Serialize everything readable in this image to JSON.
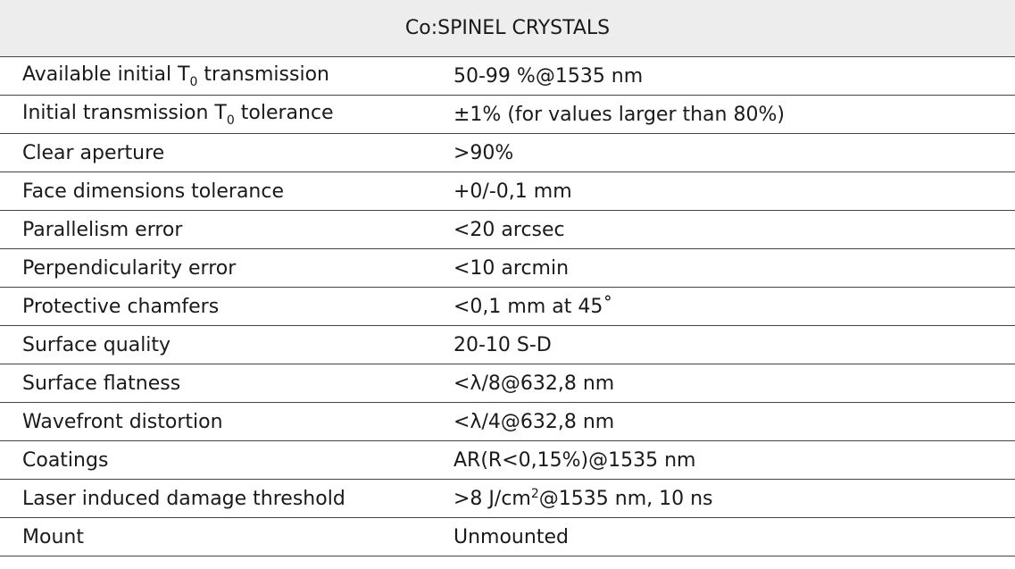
{
  "header": {
    "title": "Co:SPINEL CRYSTALS"
  },
  "table": {
    "rows": [
      [
        [
          "Available initial T",
          {
            "sub": "0"
          },
          " transmission"
        ],
        [
          "50-99 %@1535 nm"
        ]
      ],
      [
        [
          "Initial transmission T",
          {
            "sub": "0"
          },
          " tolerance"
        ],
        [
          "±1% (for values larger than 80%)"
        ]
      ],
      [
        [
          "Clear aperture"
        ],
        [
          ">90%"
        ]
      ],
      [
        [
          "Face dimensions tolerance"
        ],
        [
          "+0/-0,1 mm"
        ]
      ],
      [
        [
          "Parallelism error"
        ],
        [
          "<20 arcsec"
        ]
      ],
      [
        [
          "Perpendicularity error"
        ],
        [
          "<10 arcmin"
        ]
      ],
      [
        [
          "Protective chamfers"
        ],
        [
          "<0,1 mm at 45˚"
        ]
      ],
      [
        [
          "Surface quality"
        ],
        [
          "20-10 S-D"
        ]
      ],
      [
        [
          "Surface flatness"
        ],
        [
          "<λ/8@632,8 nm"
        ]
      ],
      [
        [
          "Wavefront distortion"
        ],
        [
          "<λ/4@632,8 nm"
        ]
      ],
      [
        [
          "Coatings"
        ],
        [
          "AR(R<0,15%)@1535 nm"
        ]
      ],
      [
        [
          "Laser induced damage threshold"
        ],
        [
          ">8 J/cm",
          {
            "sup": "2"
          },
          "@1535 nm, 10 ns"
        ]
      ],
      [
        [
          "Mount"
        ],
        [
          "Unmounted"
        ]
      ]
    ]
  }
}
